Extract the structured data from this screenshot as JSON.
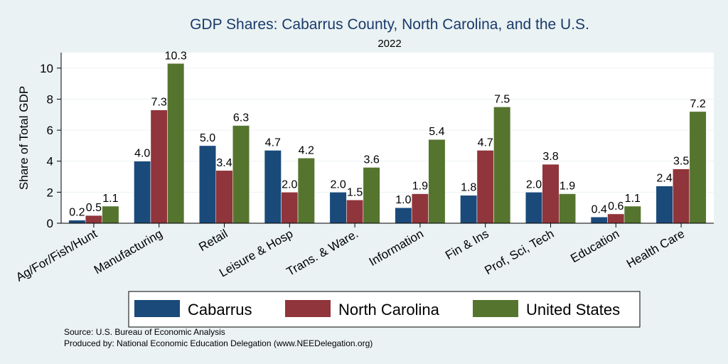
{
  "colors": {
    "background": "#eaf2f3",
    "plot_background": "#ffffff",
    "grid": "#eaf2f3",
    "title": "#1a3a6b",
    "series": [
      "#1a4a7a",
      "#90353b",
      "#55752f"
    ]
  },
  "chart_data": {
    "type": "bar",
    "title": "GDP Shares: Cabarrus County, North Carolina, and the U.S.",
    "subtitle": "2022",
    "xlabel": "",
    "ylabel": "Share of Total GDP",
    "ylim": [
      0,
      11
    ],
    "yticks": [
      0,
      2,
      4,
      6,
      8,
      10
    ],
    "grid": true,
    "legend_position": "bottom",
    "categories": [
      "Ag/For/Fish/Hunt",
      "Manufacturing",
      "Retail",
      "Leisure & Hosp",
      "Trans. & Ware.",
      "Information",
      "Fin & Ins",
      "Prof, Sci, Tech",
      "Education",
      "Health Care"
    ],
    "series": [
      {
        "name": "Cabarrus",
        "values": [
          0.2,
          4.0,
          5.0,
          4.7,
          2.0,
          1.0,
          1.8,
          2.0,
          0.4,
          2.4
        ]
      },
      {
        "name": "North Carolina",
        "values": [
          0.5,
          7.3,
          3.4,
          2.0,
          1.5,
          1.9,
          4.7,
          3.8,
          0.6,
          3.5
        ]
      },
      {
        "name": "United States",
        "values": [
          1.1,
          10.3,
          6.3,
          4.2,
          3.6,
          5.4,
          7.5,
          1.9,
          1.1,
          7.2
        ]
      }
    ]
  },
  "source": {
    "line1": "Source: U.S. Bureau of Economic Analysis",
    "line2": "Produced by: National Economic Education Delegation (www.NEEDelegation.org)"
  }
}
